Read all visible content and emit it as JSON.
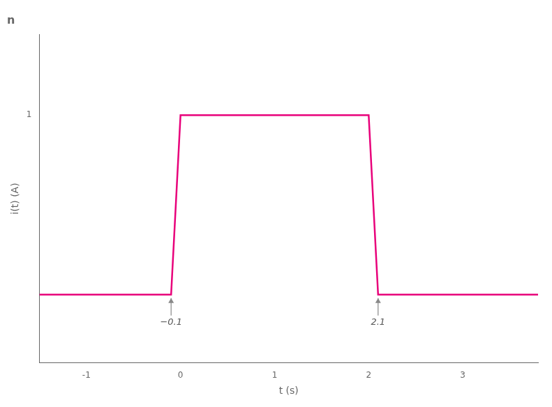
{
  "chart_data": {
    "type": "line",
    "title": "n",
    "xlabel": "t (s)",
    "ylabel": "i(t) (A)",
    "x": [
      -1.5,
      -0.1,
      0.0,
      2.0,
      2.1,
      3.8
    ],
    "values": [
      0.0,
      0.0,
      1.0,
      1.0,
      0.0,
      0.0
    ],
    "color": "#e8007a",
    "marker": "none",
    "line_style": "solid",
    "xlim": [
      -1.5,
      3.8
    ],
    "ylim": [
      -0.38,
      1.45
    ],
    "xticks": [
      -1,
      0,
      1,
      2,
      3
    ],
    "yticks": [
      1
    ],
    "grid": false,
    "annotations": [
      {
        "text": "−0.1",
        "x": -0.1,
        "y": 0.0
      },
      {
        "text": "2.1",
        "x": 2.1,
        "y": 0.0
      }
    ]
  }
}
